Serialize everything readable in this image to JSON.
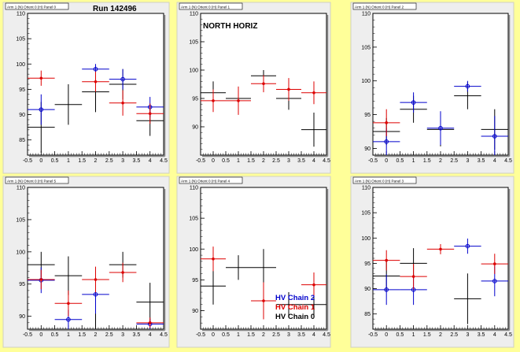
{
  "figure": {
    "run_label": "Run 142496",
    "north_label": "NORTH HORIZ",
    "legend": [
      "HV Chain 2",
      "HV Chain 1",
      "HV Chain 0"
    ],
    "colors": {
      "chain2": "#0000cc",
      "chain1": "#dd0000",
      "chain0": "#000000",
      "background": "#ffff99",
      "panel": "#eeeeee",
      "plot": "#ffffff"
    }
  },
  "chart_data": [
    {
      "type": "scatter",
      "title": "Arm 1 (N) Orient 0 (H) Panel 0",
      "xlim": [
        -0.5,
        4.5
      ],
      "ylim": [
        82,
        110
      ],
      "xticks": [
        "-0.5",
        "0",
        "0.5",
        "1",
        "1.5",
        "2",
        "2.5",
        "3",
        "3.5",
        "4",
        "4.5"
      ],
      "yticks": [
        85,
        90,
        95,
        100,
        105,
        110
      ],
      "series": [
        {
          "name": "HV Chain 2",
          "x": [
            0,
            2,
            3,
            4
          ],
          "y": [
            91.0,
            99.0,
            97.0,
            91.5
          ],
          "yerr": [
            3,
            1,
            2,
            2
          ]
        },
        {
          "name": "HV Chain 1",
          "x": [
            0,
            2,
            3,
            4
          ],
          "y": [
            97.2,
            96.5,
            92.3,
            90.2
          ],
          "yerr": [
            1.5,
            2,
            2.5,
            2
          ]
        },
        {
          "name": "HV Chain 0",
          "x": [
            0,
            1,
            2,
            3,
            4
          ],
          "y": [
            87.5,
            92.0,
            94.5,
            96.0,
            88.8
          ],
          "yerr": [
            5,
            4,
            4,
            3,
            3
          ]
        }
      ]
    },
    {
      "type": "scatter",
      "title": "Arm 1 (N) Orient 0 (H) Panel 1",
      "xlim": [
        -0.5,
        4.5
      ],
      "ylim": [
        85,
        110
      ],
      "xticks": [
        "-0.5",
        "0",
        "0.5",
        "1",
        "1.5",
        "2",
        "2.5",
        "3",
        "3.5",
        "4",
        "4.5"
      ],
      "yticks": [
        90,
        95,
        100,
        105,
        110
      ],
      "series": [
        {
          "name": "HV Chain 1",
          "x": [
            0,
            1,
            2,
            3,
            4
          ],
          "y": [
            94.6,
            94.6,
            97.6,
            96.6,
            96.0
          ],
          "yerr": [
            2,
            2.5,
            1.5,
            2,
            2
          ]
        },
        {
          "name": "HV Chain 0",
          "x": [
            0,
            1,
            2,
            3,
            4
          ],
          "y": [
            96.0,
            95.0,
            99.0,
            95.0,
            89.5
          ],
          "yerr": [
            2,
            1.5,
            1,
            2,
            3
          ]
        }
      ]
    },
    {
      "type": "scatter",
      "title": "Arm 1 (N) Orient 0 (H) Panel 2",
      "xlim": [
        -0.5,
        4.5
      ],
      "ylim": [
        89,
        110
      ],
      "xticks": [
        "-0.5",
        "0",
        "0.5",
        "1",
        "1.5",
        "2",
        "2.5",
        "3",
        "3.5",
        "4",
        "4.5"
      ],
      "yticks": [
        90,
        95,
        100,
        105,
        110
      ],
      "series": [
        {
          "name": "HV Chain 2",
          "x": [
            0,
            1,
            2,
            3,
            4
          ],
          "y": [
            91.0,
            96.8,
            93.0,
            99.2,
            91.8
          ],
          "yerr": [
            2,
            1.5,
            2.5,
            0.8,
            3
          ]
        },
        {
          "name": "HV Chain 1",
          "x": [
            0
          ],
          "y": [
            93.8
          ],
          "yerr": [
            2
          ]
        },
        {
          "name": "HV Chain 0",
          "x": [
            0,
            1,
            2,
            3,
            4
          ],
          "y": [
            92.5,
            95.8,
            92.8,
            97.8,
            92.8
          ],
          "yerr": [
            2,
            2,
            2.5,
            2,
            3
          ]
        }
      ]
    },
    {
      "type": "scatter",
      "title": "Arm 1 (N) Orient 0 (H) Panel 5",
      "xlim": [
        -0.5,
        4.5
      ],
      "ylim": [
        88,
        110
      ],
      "xticks": [
        "-0.5",
        "0",
        "0.5",
        "1",
        "1.5",
        "2",
        "2.5",
        "3",
        "3.5",
        "4",
        "4.5"
      ],
      "yticks": [
        90,
        95,
        100,
        105,
        110
      ],
      "series": [
        {
          "name": "HV Chain 2",
          "x": [
            0,
            1,
            2,
            4
          ],
          "y": [
            95.6,
            89.5,
            93.4,
            88.8
          ],
          "yerr": [
            2,
            1.5,
            3,
            0.8
          ]
        },
        {
          "name": "HV Chain 1",
          "x": [
            0,
            1,
            2,
            3,
            4
          ],
          "y": [
            95.7,
            92.0,
            95.7,
            96.8,
            89.0
          ],
          "yerr": [
            1.5,
            2,
            2,
            1.5,
            0.8
          ]
        },
        {
          "name": "HV Chain 0",
          "x": [
            0,
            1,
            2,
            3,
            4
          ],
          "y": [
            98.0,
            96.3,
            88.0,
            98.0,
            92.2
          ],
          "yerr": [
            2,
            3,
            3,
            2,
            3
          ]
        }
      ]
    },
    {
      "type": "scatter",
      "title": "Arm 1 (N) Orient 0 (H) Panel 4",
      "xlim": [
        -0.5,
        4.5
      ],
      "ylim": [
        87,
        110
      ],
      "xticks": [
        "-0.5",
        "0",
        "0.5",
        "1",
        "1.5",
        "2",
        "2.5",
        "3",
        "3.5",
        "4",
        "4.5"
      ],
      "yticks": [
        90,
        95,
        100,
        105,
        110
      ],
      "series": [
        {
          "name": "HV Chain 1",
          "x": [
            0,
            2,
            4
          ],
          "y": [
            98.4,
            91.6,
            94.2
          ],
          "yerr": [
            2,
            3,
            2
          ]
        },
        {
          "name": "HV Chain 0",
          "x": [
            0,
            1,
            2,
            3,
            4
          ],
          "y": [
            94.0,
            97.0,
            97.0,
            91.0,
            91.0
          ],
          "yerr": [
            3,
            2,
            3,
            2,
            2
          ]
        }
      ]
    },
    {
      "type": "scatter",
      "title": "Arm 1 (N) Orient 0 (H) Panel 3",
      "xlim": [
        -0.5,
        4.5
      ],
      "ylim": [
        82,
        110
      ],
      "xticks": [
        "-0.5",
        "0",
        "0.5",
        "1",
        "1.5",
        "2",
        "2.5",
        "3",
        "3.5",
        "4",
        "4.5"
      ],
      "yticks": [
        85,
        90,
        95,
        100,
        105,
        110
      ],
      "series": [
        {
          "name": "HV Chain 2",
          "x": [
            0,
            1,
            3,
            4
          ],
          "y": [
            89.8,
            89.8,
            98.4,
            91.5
          ],
          "yerr": [
            3,
            3,
            1.5,
            3
          ]
        },
        {
          "name": "HV Chain 1",
          "x": [
            0,
            1,
            2,
            4
          ],
          "y": [
            95.6,
            92.4,
            97.8,
            94.9
          ],
          "yerr": [
            2,
            2.5,
            1,
            2
          ]
        },
        {
          "name": "HV Chain 0",
          "x": [
            0,
            1,
            3
          ],
          "y": [
            92.5,
            95.0,
            88.0
          ],
          "yerr": [
            3,
            3,
            5
          ]
        }
      ]
    }
  ]
}
